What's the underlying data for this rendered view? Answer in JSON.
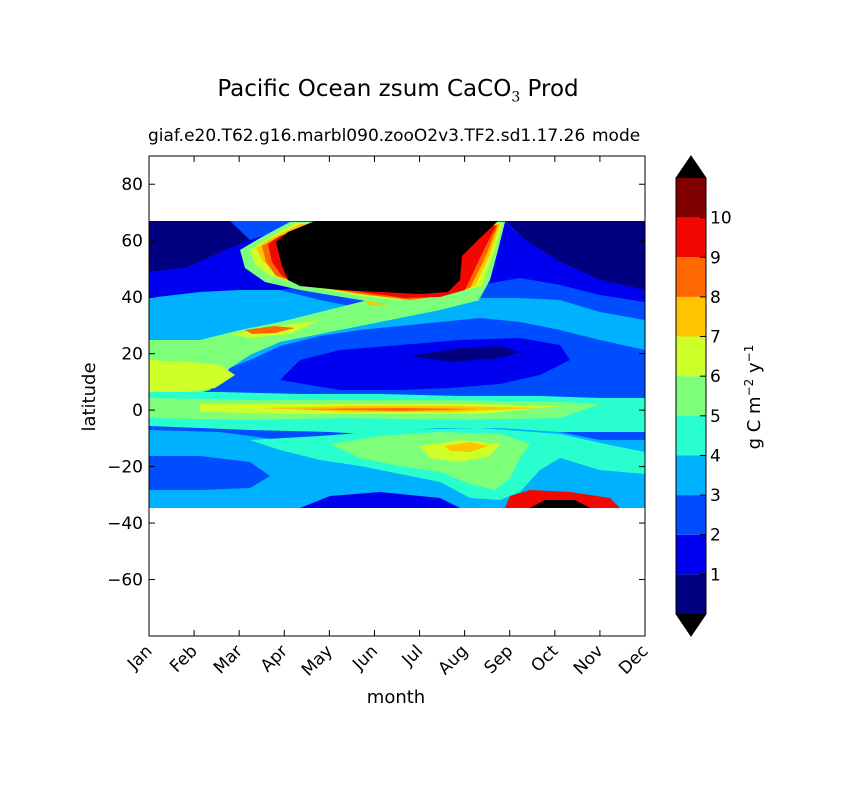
{
  "chart_data": {
    "type": "heatmap",
    "title_main": "Pacific Ocean zsum CaCO",
    "title_sub": "3",
    "title_suffix": "Prod",
    "subtitle_left": "giaf.e20.T62.g16.marbl090.zooO2v3.TF2.sd1.17.26",
    "subtitle_right": "mode",
    "xlabel": "month",
    "ylabel": "latitude",
    "x_categories": [
      "Jan",
      "Feb",
      "Mar",
      "Apr",
      "May",
      "Jun",
      "Jul",
      "Aug",
      "Sep",
      "Oct",
      "Nov",
      "Dec"
    ],
    "ylim": [
      -80,
      90
    ],
    "y_ticks": [
      80,
      60,
      40,
      20,
      0,
      -20,
      -40,
      -60
    ],
    "y_tick_labels": [
      "80",
      "60",
      "40",
      "20",
      "0",
      "−20",
      "−40",
      "−60"
    ],
    "data_lat_range": [
      -34,
      67
    ],
    "colorbar": {
      "label_main": "g C m",
      "label_exp1": "−2",
      "label_mid": " y",
      "label_exp2": "−1",
      "ticks": [
        "1",
        "2",
        "3",
        "4",
        "5",
        "6",
        "7",
        "8",
        "9",
        "10"
      ],
      "colors": [
        "#000080",
        "#0000f1",
        "#004dff",
        "#00b1ff",
        "#29ffce",
        "#7dff7a",
        "#ceff29",
        "#ffc400",
        "#ff6800",
        "#f10800",
        "#800000"
      ],
      "under_color": "#000000",
      "over_color": "#000000",
      "extend": "both"
    },
    "grid": false
  }
}
